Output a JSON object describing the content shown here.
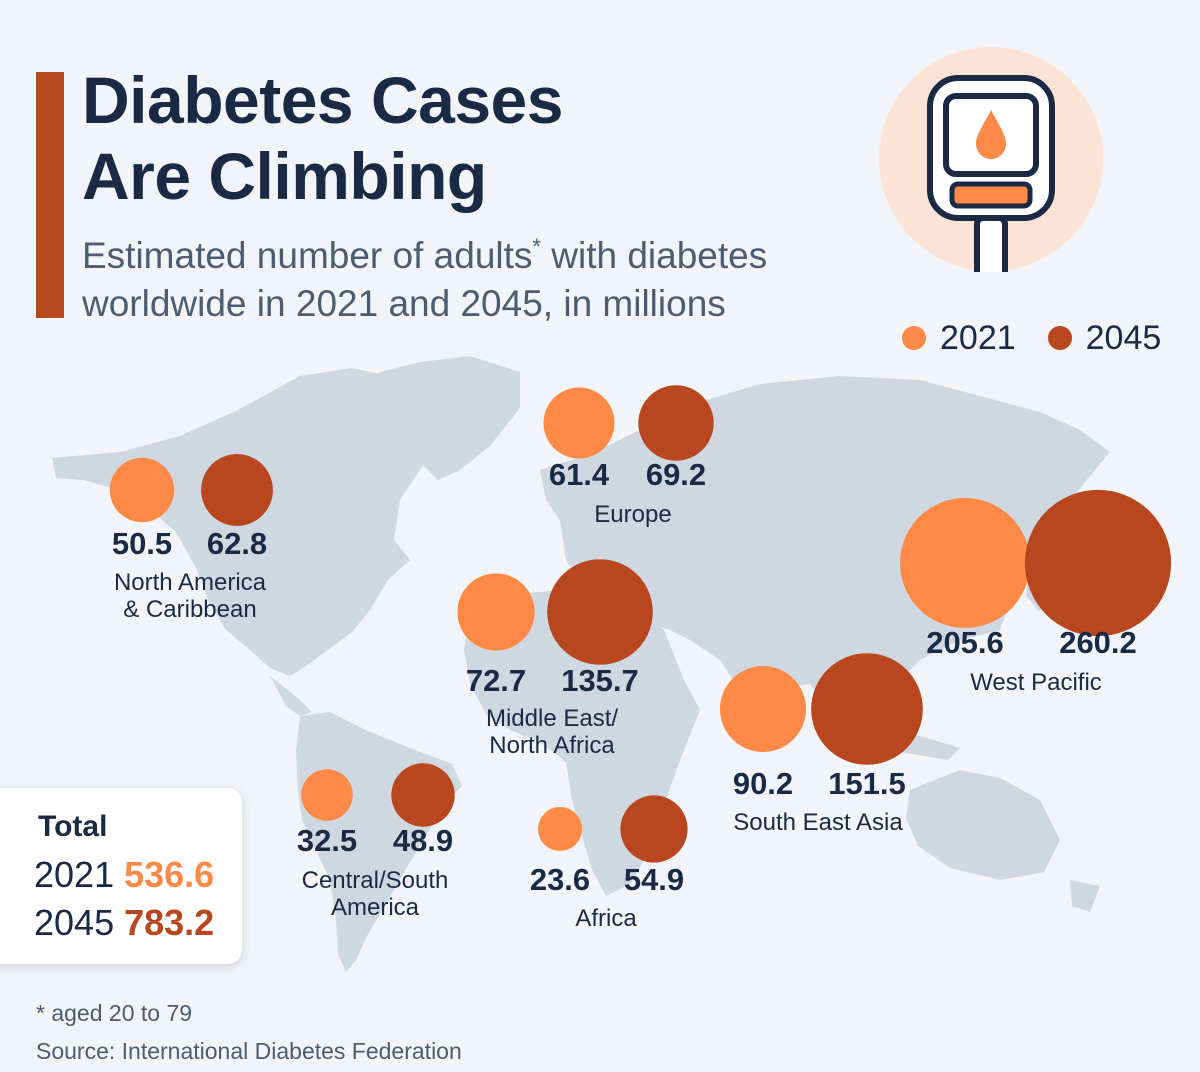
{
  "header": {
    "title_line1": "Diabetes Cases",
    "title_line2": "Are Climbing",
    "subtitle_line1_a": "Estimated number of adults",
    "subtitle_asterisk": "*",
    "subtitle_line1_b": " with diabetes",
    "subtitle_line2": "worldwide in 2021 and 2045, in millions"
  },
  "colors": {
    "color_2021": "#ff8947",
    "color_2045": "#b8461e",
    "accent": "#b5481f",
    "map_land": "#cfd8e0",
    "text_dark": "#1b2a44"
  },
  "legend": [
    {
      "label": "2021",
      "color": "#ff8947"
    },
    {
      "label": "2045",
      "color": "#b8461e"
    }
  ],
  "icon": {
    "name": "glucose-meter-icon"
  },
  "chart_data": {
    "type": "bubble-map",
    "title": "Diabetes Cases Are Climbing",
    "subtitle": "Estimated number of adults* with diabetes worldwide in 2021 and 2045, in millions",
    "unit": "millions",
    "series_names": [
      "2021",
      "2045"
    ],
    "regions": [
      {
        "name_lines": [
          "North America",
          "& Caribbean"
        ],
        "v2021": 50.5,
        "v2045": 62.8,
        "label_2021": "50.5",
        "label_2045": "62.8"
      },
      {
        "name_lines": [
          "Europe"
        ],
        "v2021": 61.4,
        "v2045": 69.2,
        "label_2021": "61.4",
        "label_2045": "69.2"
      },
      {
        "name_lines": [
          "West Pacific"
        ],
        "v2021": 205.6,
        "v2045": 260.2,
        "label_2021": "205.6",
        "label_2045": "260.2"
      },
      {
        "name_lines": [
          "Middle East/",
          "North Africa"
        ],
        "v2021": 72.7,
        "v2045": 135.7,
        "label_2021": "72.7",
        "label_2045": "135.7"
      },
      {
        "name_lines": [
          "South East Asia"
        ],
        "v2021": 90.2,
        "v2045": 151.5,
        "label_2021": "90.2",
        "label_2045": "151.5"
      },
      {
        "name_lines": [
          "Central/South",
          "America"
        ],
        "v2021": 32.5,
        "v2045": 48.9,
        "label_2021": "32.5",
        "label_2045": "48.9"
      },
      {
        "name_lines": [
          "Africa"
        ],
        "v2021": 23.6,
        "v2045": 54.9,
        "label_2021": "23.6",
        "label_2045": "54.9"
      }
    ]
  },
  "totals": {
    "title": "Total",
    "rows": [
      {
        "year": "2021",
        "value": "536.6"
      },
      {
        "year": "2045",
        "value": "783.2"
      }
    ]
  },
  "footer": {
    "footnote": "* aged 20 to 79",
    "source": "Source: International Diabetes Federation"
  }
}
